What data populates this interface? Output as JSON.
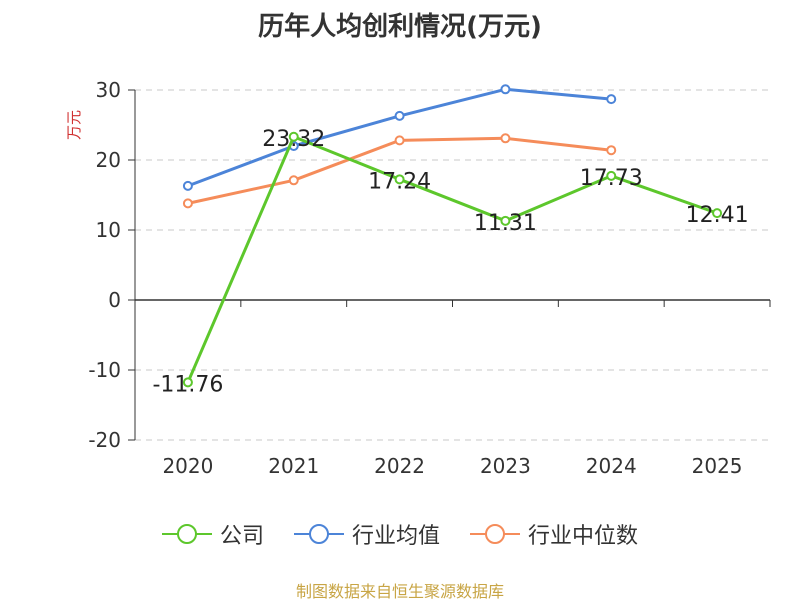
{
  "colors": {
    "company": "#5dc72c",
    "industry_mean": "#4c84d8",
    "industry_median": "#f58c5a",
    "ylabel": "#d03030",
    "grid": "#c8c8c8",
    "axis": "#333333",
    "source": "#c8a545"
  },
  "chart_data": {
    "type": "line",
    "title": "历年人均创利情况(万元)",
    "ylabel": "万元",
    "xlabel": "",
    "categories": [
      "2020",
      "2021",
      "2022",
      "2023",
      "2024",
      "2025"
    ],
    "ylim": [
      -20,
      30
    ],
    "yticks": [
      30,
      20,
      10,
      0,
      -10,
      -20
    ],
    "grid": true,
    "legend_position": "bottom",
    "series": [
      {
        "name": "公司",
        "key": "company",
        "values": [
          -11.76,
          23.32,
          17.24,
          11.31,
          17.73,
          12.41
        ],
        "labels": [
          "-11.76",
          "23.32",
          "17.24",
          "11.31",
          "17.73",
          "12.41"
        ]
      },
      {
        "name": "行业均值",
        "key": "industry_mean",
        "values": [
          16.3,
          22.0,
          26.3,
          30.1,
          28.7,
          null
        ]
      },
      {
        "name": "行业中位数",
        "key": "industry_median",
        "values": [
          13.8,
          17.1,
          22.8,
          23.1,
          21.4,
          null
        ]
      }
    ]
  },
  "source_note": "制图数据来自恒生聚源数据库"
}
